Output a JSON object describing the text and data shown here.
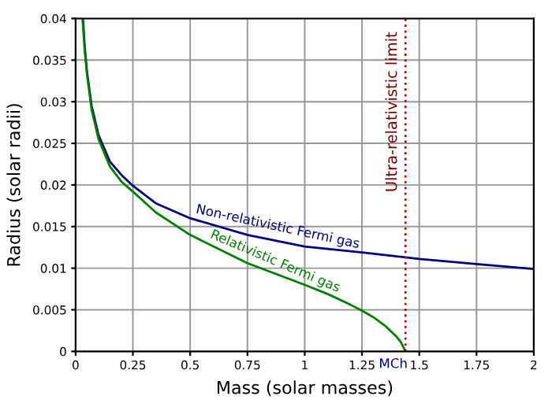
{
  "chart_data": {
    "type": "line",
    "xlabel": "Mass (solar masses)",
    "ylabel": "Radius (solar radii)",
    "xlim": [
      0,
      2
    ],
    "xticks": [
      0,
      0.25,
      0.5,
      0.75,
      1,
      1.25,
      1.5,
      1.75,
      2
    ],
    "ylim": [
      0,
      0.04
    ],
    "yticks": [
      0,
      0.005,
      0.01,
      0.015,
      0.02,
      0.025,
      0.03,
      0.035,
      0.04
    ],
    "grid": true,
    "line_style": "solid",
    "marker": "none",
    "series": [
      {
        "name": "Non-relativistic Fermi gas",
        "color": "#000080",
        "x": [
          0.032,
          0.04,
          0.05,
          0.07,
          0.1,
          0.15,
          0.2,
          0.25,
          0.35,
          0.5,
          0.75,
          1,
          1.25,
          1.5,
          1.75,
          2
        ],
        "values": [
          0.04,
          0.0365,
          0.0335,
          0.0295,
          0.026,
          0.0228,
          0.0212,
          0.0199,
          0.0178,
          0.016,
          0.014,
          0.0126,
          0.0119,
          0.0111,
          0.0105,
          0.0099
        ]
      },
      {
        "name": "Relativistic Fermi gas",
        "color": "#008000",
        "x": [
          0.03,
          0.04,
          0.05,
          0.07,
          0.1,
          0.15,
          0.2,
          0.25,
          0.35,
          0.5,
          0.75,
          1,
          1.1,
          1.2,
          1.25,
          1.3,
          1.35,
          1.4,
          1.42,
          1.44
        ],
        "values": [
          0.04,
          0.036,
          0.0332,
          0.029,
          0.0255,
          0.0222,
          0.0204,
          0.0192,
          0.0167,
          0.014,
          0.0106,
          0.008,
          0.0069,
          0.0056,
          0.0049,
          0.0041,
          0.0031,
          0.0018,
          0.0011,
          0
        ]
      }
    ],
    "ref_lines": [
      {
        "axis": "x",
        "value": 1.44,
        "label": "Ultra-relativistic limit",
        "color": "#cc0000",
        "line_style": "dotted"
      }
    ],
    "annotations": [
      {
        "text": "MCh",
        "x": 1.44,
        "y": 0
      }
    ]
  }
}
